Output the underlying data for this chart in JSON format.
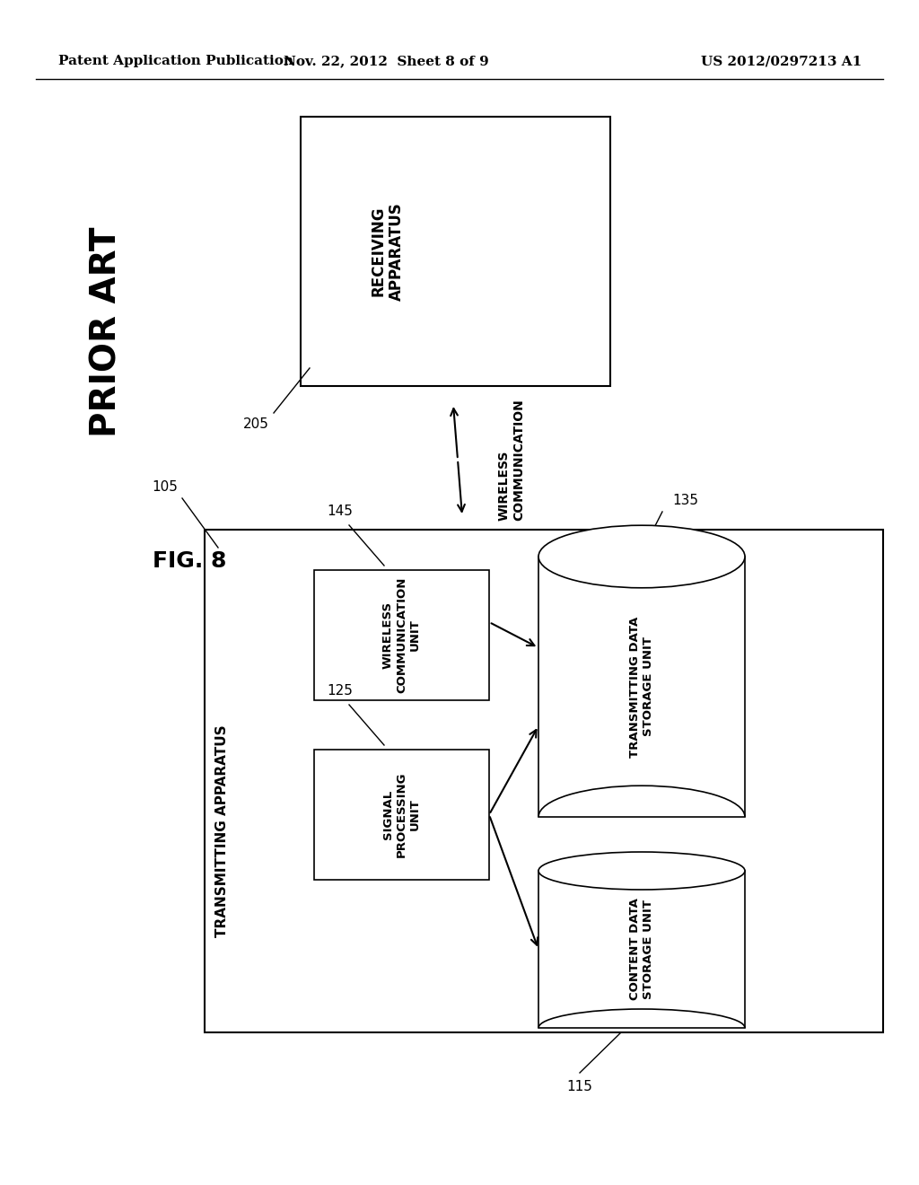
{
  "bg_color": "#ffffff",
  "header_left": "Patent Application Publication",
  "header_center": "Nov. 22, 2012  Sheet 8 of 9",
  "header_right": "US 2012/0297213 A1",
  "prior_art_label": "PRIOR ART",
  "fig8_label": "FIG. 8"
}
